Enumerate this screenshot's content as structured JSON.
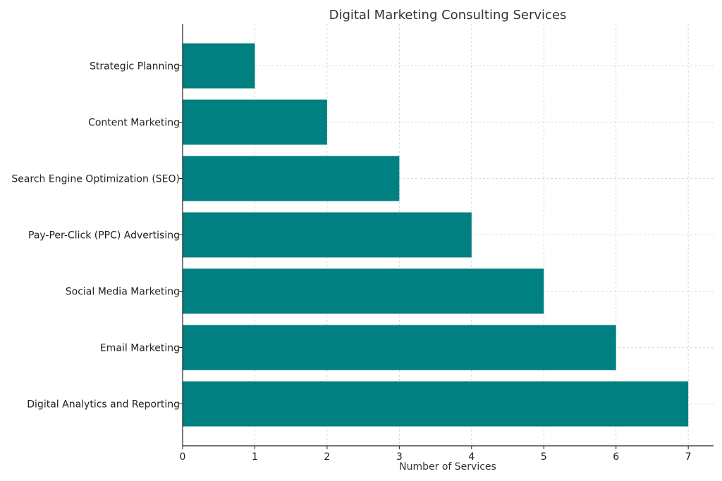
{
  "chart_data": {
    "type": "bar",
    "orientation": "horizontal",
    "title": "Digital Marketing Consulting Services",
    "xlabel": "Number of Services",
    "ylabel": "",
    "categories": [
      "Strategic Planning",
      "Content Marketing",
      "Search Engine Optimization (SEO)",
      "Pay-Per-Click (PPC) Advertising",
      "Social Media Marketing",
      "Email Marketing",
      "Digital Analytics and Reporting"
    ],
    "values": [
      1,
      2,
      3,
      4,
      5,
      6,
      7
    ],
    "xlim": [
      0,
      7.35
    ],
    "xticks": [
      "0",
      "1",
      "2",
      "3",
      "4",
      "5",
      "6",
      "7"
    ],
    "grid": true,
    "bar_color": "#008080"
  }
}
